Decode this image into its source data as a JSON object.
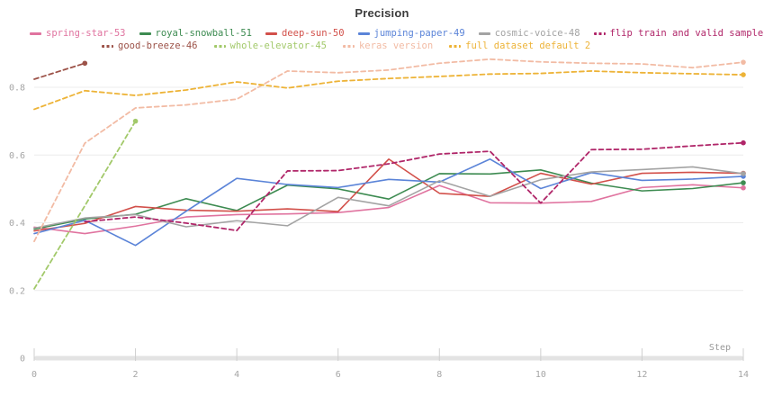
{
  "title": "Precision",
  "axes": {
    "x_label": "Step",
    "x_ticks": [
      0,
      2,
      4,
      6,
      8,
      10,
      12,
      14
    ],
    "y_ticks": [
      0,
      0.2,
      0.4,
      0.6,
      0.8
    ]
  },
  "legend": {
    "rows": [
      [
        "spring-star-53",
        "royal-snowball-51",
        "deep-sun-50",
        "jumping-paper-49",
        "cosmic-voice-48",
        "flip train and valid sample"
      ],
      [
        "good-breeze-46",
        "whole-elevator-45",
        "keras version",
        "full dataset default 2"
      ]
    ]
  },
  "chart_data": {
    "type": "line",
    "title": "Precision",
    "xlabel": "Step",
    "x_range": [
      0,
      14
    ],
    "ylim": [
      0,
      0.9
    ],
    "grid": true,
    "legend_position": "top",
    "series": [
      {
        "name": "spring-star-53",
        "color": "#e0739f",
        "style": "solid",
        "x": [
          0,
          1,
          2,
          3,
          4,
          5,
          6,
          7,
          8,
          9,
          10,
          11,
          12,
          13,
          14
        ],
        "values": [
          0.387,
          0.368,
          0.39,
          0.417,
          0.424,
          0.426,
          0.43,
          0.445,
          0.51,
          0.459,
          0.458,
          0.463,
          0.504,
          0.512,
          0.503
        ]
      },
      {
        "name": "royal-snowball-51",
        "color": "#3d8b51",
        "style": "solid",
        "x": [
          0,
          1,
          2,
          3,
          4,
          5,
          6,
          7,
          8,
          9,
          10,
          11,
          12,
          13,
          14
        ],
        "values": [
          0.381,
          0.411,
          0.425,
          0.471,
          0.436,
          0.511,
          0.5,
          0.47,
          0.545,
          0.544,
          0.556,
          0.517,
          0.494,
          0.501,
          0.518
        ]
      },
      {
        "name": "deep-sun-50",
        "color": "#d2504a",
        "style": "solid",
        "x": [
          0,
          1,
          2,
          3,
          4,
          5,
          6,
          7,
          8,
          9,
          10,
          11,
          12,
          13,
          14
        ],
        "values": [
          0.376,
          0.398,
          0.448,
          0.437,
          0.434,
          0.441,
          0.433,
          0.588,
          0.487,
          0.478,
          0.546,
          0.514,
          0.546,
          0.549,
          0.546
        ]
      },
      {
        "name": "jumping-paper-49",
        "color": "#5b84d8",
        "style": "solid",
        "x": [
          0,
          1,
          2,
          3,
          4,
          5,
          6,
          7,
          8,
          9,
          10,
          11,
          12,
          13,
          14
        ],
        "values": [
          0.368,
          0.407,
          0.333,
          0.434,
          0.531,
          0.513,
          0.504,
          0.528,
          0.52,
          0.588,
          0.501,
          0.548,
          0.525,
          0.529,
          0.537
        ]
      },
      {
        "name": "cosmic-voice-48",
        "color": "#a3a3a3",
        "style": "solid",
        "x": [
          0,
          1,
          2,
          3,
          4,
          5,
          6,
          7,
          8,
          9,
          10,
          11,
          12,
          13,
          14
        ],
        "values": [
          0.384,
          0.414,
          0.424,
          0.388,
          0.406,
          0.391,
          0.475,
          0.45,
          0.524,
          0.478,
          0.527,
          0.55,
          0.557,
          0.565,
          0.545
        ]
      },
      {
        "name": "flip train and valid sample",
        "color": "#b02669",
        "style": "dashed",
        "x": [
          1,
          2,
          3,
          4,
          5,
          6,
          7,
          8,
          9,
          10,
          11,
          12,
          13,
          14
        ],
        "values": [
          0.403,
          0.417,
          0.399,
          0.377,
          0.553,
          0.554,
          0.574,
          0.603,
          0.611,
          0.458,
          0.616,
          0.617,
          0.627,
          0.636
        ]
      },
      {
        "name": "good-breeze-46",
        "color": "#9c5248",
        "style": "dashed",
        "x": [
          0,
          1
        ],
        "values": [
          0.824,
          0.871
        ]
      },
      {
        "name": "whole-elevator-45",
        "color": "#a2c96a",
        "style": "dashed",
        "x": [
          0,
          1,
          2
        ],
        "values": [
          0.205,
          0.45,
          0.7
        ]
      },
      {
        "name": "keras version",
        "color": "#f2bba4",
        "style": "dashed",
        "x": [
          0,
          1,
          2,
          3,
          4,
          5,
          6,
          7,
          8,
          9,
          10,
          11,
          12,
          13,
          14
        ],
        "values": [
          0.345,
          0.635,
          0.739,
          0.748,
          0.765,
          0.848,
          0.843,
          0.851,
          0.871,
          0.883,
          0.875,
          0.871,
          0.869,
          0.858,
          0.874
        ]
      },
      {
        "name": "full dataset default 2",
        "color": "#edb337",
        "style": "dashed",
        "x": [
          0,
          1,
          2,
          3,
          4,
          5,
          6,
          7,
          8,
          9,
          10,
          11,
          12,
          13,
          14
        ],
        "values": [
          0.735,
          0.79,
          0.776,
          0.792,
          0.816,
          0.798,
          0.818,
          0.826,
          0.832,
          0.839,
          0.841,
          0.848,
          0.843,
          0.84,
          0.837
        ]
      }
    ]
  },
  "style": {
    "grid_color": "#ececec",
    "axis_bar_color": "#e3e3e3",
    "tick_color": "#cfcfcf"
  }
}
